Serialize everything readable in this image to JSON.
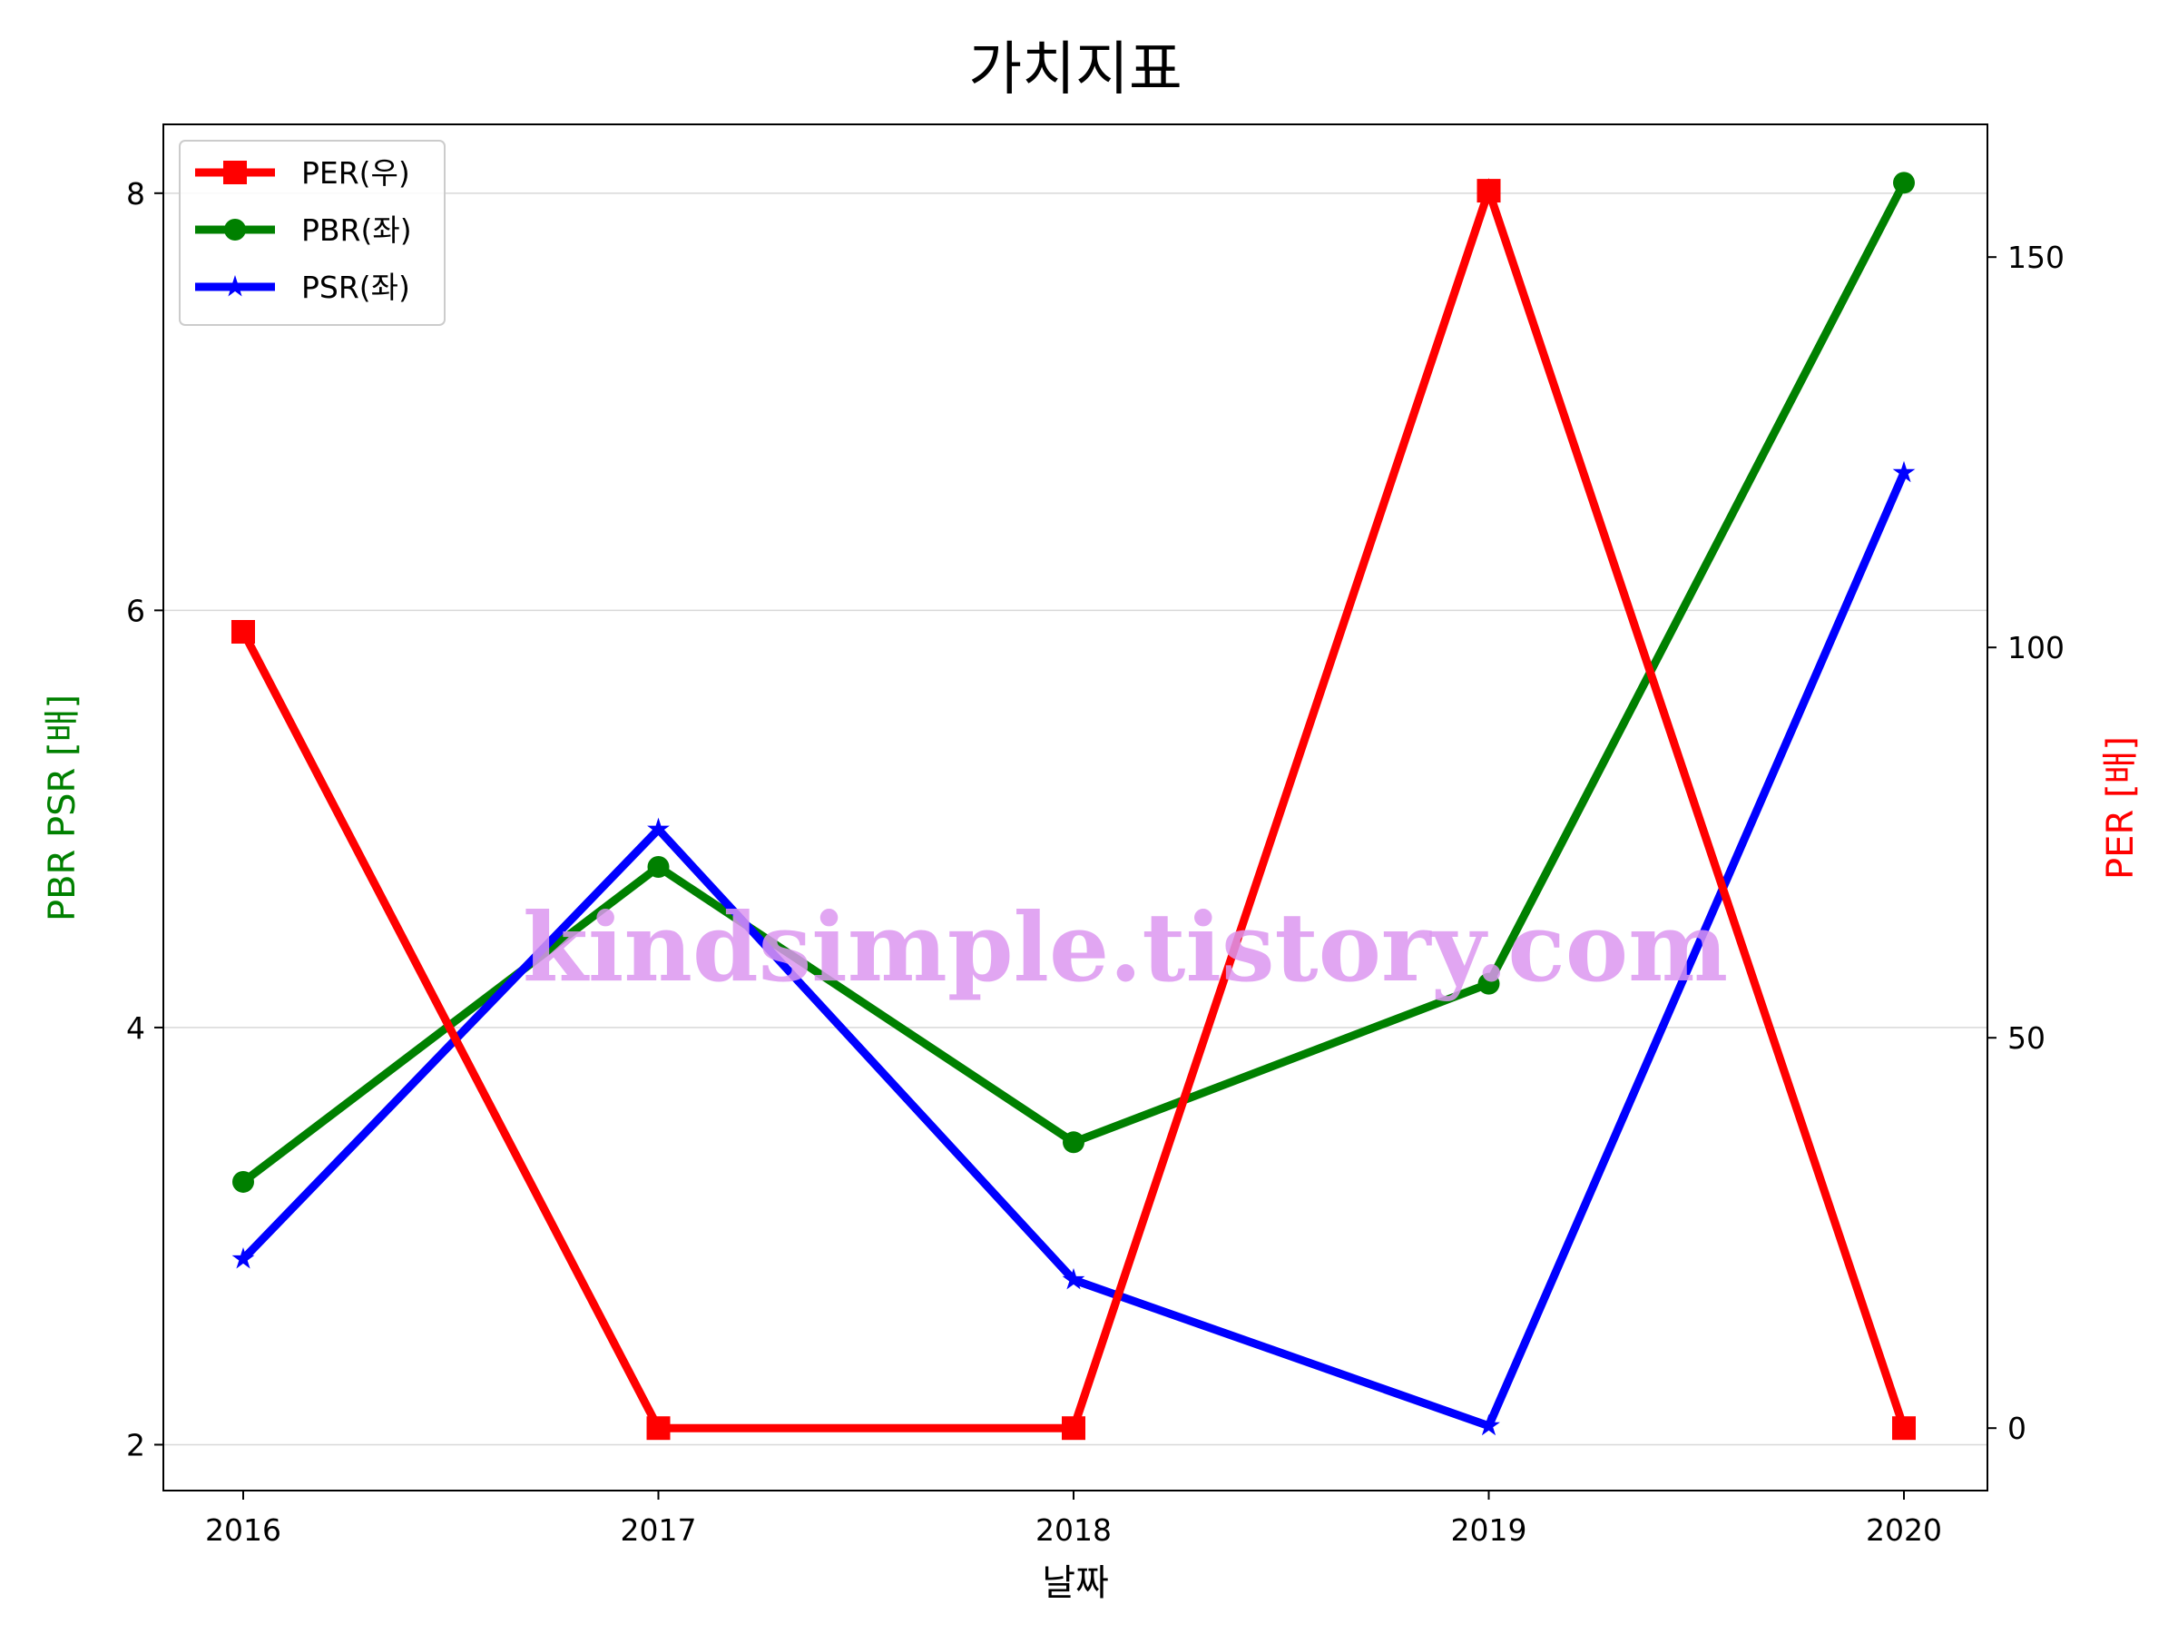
{
  "chart_data": {
    "type": "line",
    "title": "가치지표",
    "xlabel": "날짜",
    "ylabel_left": "PBR PSR [배]",
    "ylabel_right": "PER [배]",
    "categories": [
      "2016",
      "2017",
      "2018",
      "2019",
      "2020"
    ],
    "ylim_left": [
      1.78,
      8.33
    ],
    "ylim_right": [
      -8,
      167
    ],
    "yticks_left": [
      2,
      4,
      6,
      8
    ],
    "yticks_right": [
      0,
      50,
      100,
      150
    ],
    "grid": "horizontal",
    "legend_position": "top-left",
    "watermark": "kindsimple.tistory.com",
    "series": [
      {
        "name": "PER(우)",
        "axis": "right",
        "color": "#ff0000",
        "marker": "square",
        "values": [
          102,
          0,
          0,
          158.5,
          0
        ]
      },
      {
        "name": "PBR(좌)",
        "axis": "left",
        "color": "#008000",
        "marker": "circle",
        "values": [
          3.26,
          4.77,
          3.45,
          4.21,
          8.05
        ]
      },
      {
        "name": "PSR(좌)",
        "axis": "left",
        "color": "#0000ff",
        "marker": "star",
        "values": [
          2.89,
          4.95,
          2.79,
          2.09,
          6.66
        ]
      }
    ]
  }
}
